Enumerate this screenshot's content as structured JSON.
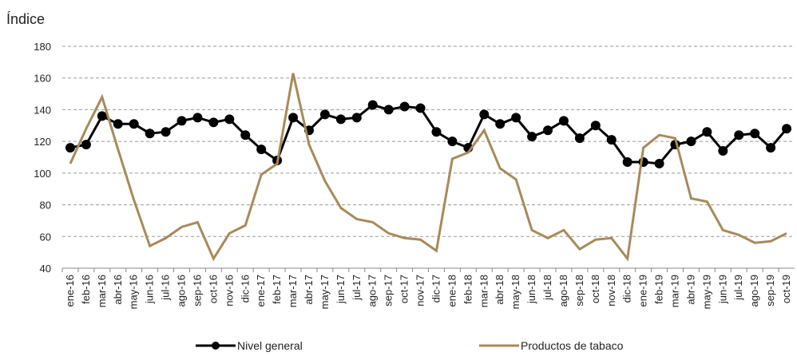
{
  "chart_data": {
    "type": "line",
    "y_axis_label": "Índice",
    "categories": [
      "ene-16",
      "feb-16",
      "mar-16",
      "abr-16",
      "may-16",
      "jun-16",
      "jul-16",
      "ago-16",
      "sep-16",
      "oct-16",
      "nov-16",
      "dic-16",
      "ene-17",
      "feb-17",
      "mar-17",
      "abr-17",
      "may-17",
      "jun-17",
      "jul-17",
      "ago-17",
      "sep-17",
      "oct-17",
      "nov-17",
      "dic-17",
      "ene-18",
      "feb-18",
      "mar-18",
      "abr-18",
      "may-18",
      "jun-18",
      "jul-18",
      "ago-18",
      "sep-18",
      "oct-18",
      "nov-18",
      "dic-18",
      "ene-19",
      "feb-19",
      "mar-19",
      "abr-19",
      "may-19",
      "jun-19",
      "jul-19",
      "ago-19",
      "sep-19",
      "oct-19"
    ],
    "series": [
      {
        "name": "Nivel general",
        "color": "#000000",
        "markers": true,
        "values": [
          116,
          118,
          136,
          131,
          131,
          125,
          126,
          133,
          135,
          132,
          134,
          124,
          115,
          108,
          135,
          127,
          137,
          134,
          135,
          143,
          140,
          142,
          141,
          126,
          120,
          116,
          137,
          131,
          135,
          123,
          127,
          133,
          122,
          130,
          121,
          107,
          107,
          106,
          118,
          120,
          126,
          114,
          124,
          125,
          116,
          128
        ]
      },
      {
        "name": "Productos de tabaco",
        "color": "#a88a5a",
        "markers": false,
        "values": [
          106,
          128,
          148,
          115,
          83,
          54,
          59,
          66,
          69,
          46,
          62,
          67,
          99,
          106,
          163,
          118,
          95,
          78,
          71,
          69,
          62,
          59,
          58,
          51,
          109,
          113,
          127,
          103,
          96,
          64,
          59,
          64,
          52,
          58,
          59,
          46,
          116,
          124,
          122,
          84,
          82,
          64,
          61,
          56,
          57,
          62
        ]
      }
    ],
    "ylim": [
      40,
      180
    ],
    "yticks": [
      40,
      60,
      80,
      100,
      120,
      140,
      160,
      180
    ],
    "grid": true,
    "legend": "bottom"
  }
}
